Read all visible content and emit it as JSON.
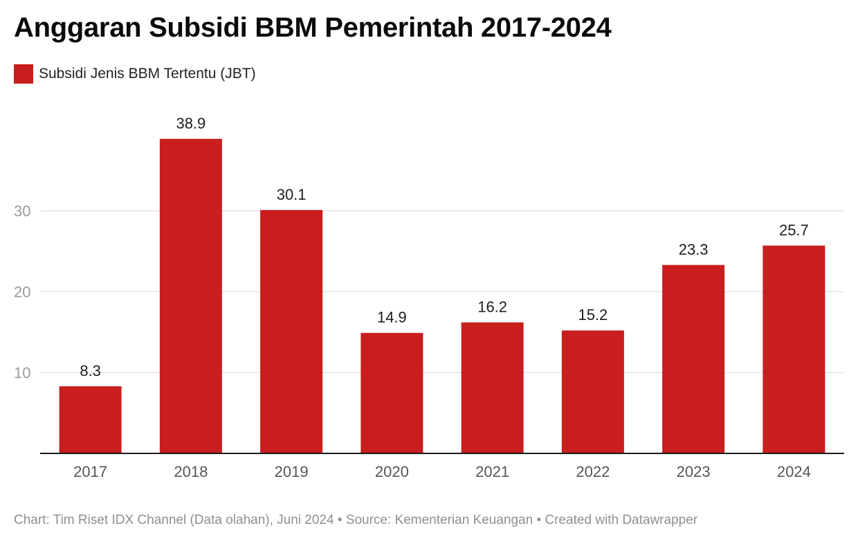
{
  "chart_data": {
    "type": "bar",
    "title": "Anggaran Subsidi BBM Pemerintah 2017-2024",
    "xlabel": "",
    "ylabel": "",
    "categories": [
      "2017",
      "2018",
      "2019",
      "2020",
      "2021",
      "2022",
      "2023",
      "2024"
    ],
    "series": [
      {
        "name": "Subsidi Jenis BBM Tertentu (JBT)",
        "color": "#c81e1e",
        "values": [
          8.3,
          38.9,
          30.1,
          14.9,
          16.2,
          15.2,
          23.3,
          25.7
        ]
      }
    ],
    "yticks": [
      10,
      20,
      30
    ],
    "ylim": [
      0,
      43
    ],
    "grid": true,
    "legend": "top-left",
    "data_labels": true
  },
  "footer": {
    "text": "Chart: Tim Riset IDX Channel (Data olahan), Juni 2024 • Source: Kementerian Keuangan • Created with Datawrapper"
  },
  "colors": {
    "bar": "#c81e1e",
    "gridline": "#e2e2e2",
    "axis": "#1a1a1a",
    "tick_label": "#9a9a9a",
    "category_label": "#555555"
  }
}
